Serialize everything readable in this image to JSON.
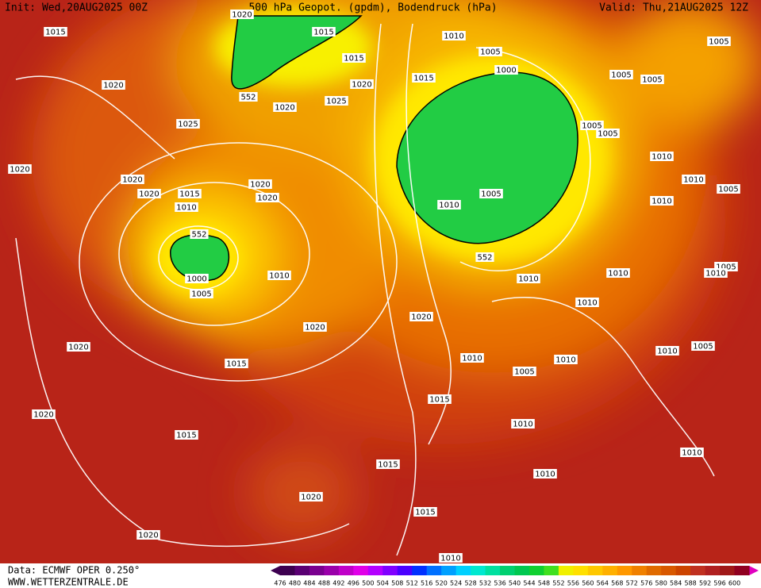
{
  "header": {
    "init": "Init: Wed,20AUG2025 00Z",
    "title": "500 hPa Geopot. (gpdm), Bodendruck (hPa)",
    "valid": "Valid: Thu,21AUG2025 12Z"
  },
  "isobars": [
    1015,
    1020,
    1015,
    1010,
    1005,
    1005,
    1015,
    1000,
    1005,
    1005,
    1020,
    1020,
    1015,
    552,
    1020,
    1025,
    1025,
    1005,
    1005,
    1020,
    1010,
    1020,
    1020,
    1010,
    1005,
    1020,
    1015,
    1020,
    1005,
    1010,
    1010,
    1010,
    552,
    552,
    1005,
    1010,
    1010,
    1000,
    1010,
    1010,
    1005,
    1010,
    1020,
    1020,
    1020,
    1010,
    1005,
    1015,
    1010,
    1010,
    1005,
    1015,
    1020,
    1010,
    1015,
    1010,
    1015,
    1010,
    1020,
    1015,
    1020,
    1010
  ],
  "scale": [
    {
      "value": 476,
      "color": "#3d0050"
    },
    {
      "value": 480,
      "color": "#5a0073"
    },
    {
      "value": 484,
      "color": "#7a008f"
    },
    {
      "value": 488,
      "color": "#9a00aa"
    },
    {
      "value": 492,
      "color": "#c000c8"
    },
    {
      "value": 496,
      "color": "#e000e8"
    },
    {
      "value": 500,
      "color": "#b400ff"
    },
    {
      "value": 504,
      "color": "#8000ff"
    },
    {
      "value": 508,
      "color": "#4a00ff"
    },
    {
      "value": 512,
      "color": "#0030ff"
    },
    {
      "value": 516,
      "color": "#0070ff"
    },
    {
      "value": 520,
      "color": "#00a0ff"
    },
    {
      "value": 524,
      "color": "#00d0ff"
    },
    {
      "value": 528,
      "color": "#00e8d0"
    },
    {
      "value": 532,
      "color": "#00e0a0"
    },
    {
      "value": 536,
      "color": "#00d070"
    },
    {
      "value": 540,
      "color": "#00c850"
    },
    {
      "value": 544,
      "color": "#10d030"
    },
    {
      "value": 548,
      "color": "#40e020"
    },
    {
      "value": 552,
      "color": "#f0f000"
    },
    {
      "value": 556,
      "color": "#ffe000"
    },
    {
      "value": 560,
      "color": "#ffc800"
    },
    {
      "value": 564,
      "color": "#ffb000"
    },
    {
      "value": 568,
      "color": "#ff9800"
    },
    {
      "value": 572,
      "color": "#f08000"
    },
    {
      "value": 576,
      "color": "#e06a00"
    },
    {
      "value": 580,
      "color": "#d85800"
    },
    {
      "value": 584,
      "color": "#cc4400"
    },
    {
      "value": 588,
      "color": "#c03020"
    },
    {
      "value": 592,
      "color": "#b02020"
    },
    {
      "value": 596,
      "color": "#a01818"
    },
    {
      "value": 600,
      "color": "#900020"
    }
  ],
  "footer": {
    "source": "Data: ECMWF OPER 0.250°",
    "site": "WWW.WETTERZENTRALE.DE"
  }
}
